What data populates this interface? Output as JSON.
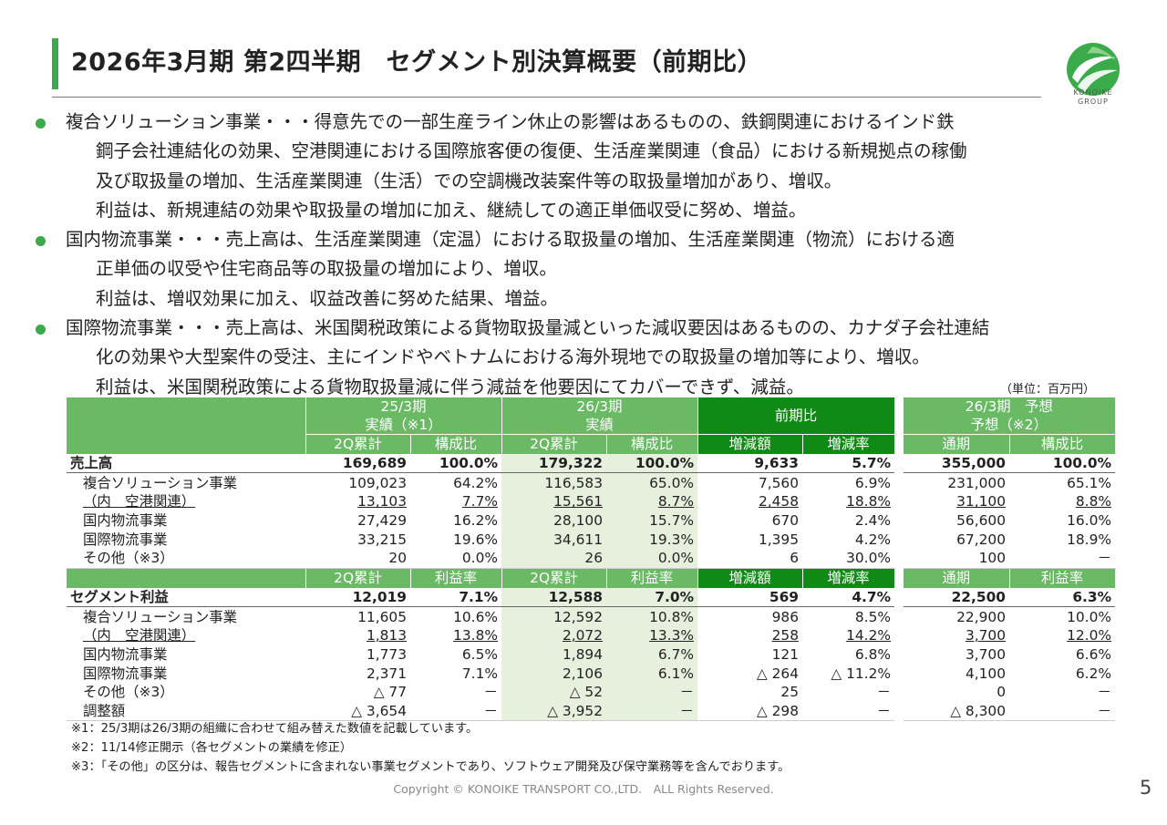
{
  "title": "2026年3月期 第2四半期　セグメント別決算概要（前期比）",
  "logo_text": [
    "KONOIKE",
    "GROUP"
  ],
  "colors": {
    "accent_green": "#3aaa4a",
    "header_green": "#6ab964",
    "header_dark_green": "#0f8a14",
    "shade": "#e7f0dc"
  },
  "bullets": [
    {
      "lines": [
        "複合ソリューション事業・・・得意先での一部生産ライン休止の影響はあるものの、鉄鋼関連におけるインド鉄",
        "鋼子会社連結化の効果、空港関連における国際旅客便の復便、生活産業関連（食品）における新規拠点の稼働",
        "及び取扱量の増加、生活産業関連（生活）での空調機改装案件等の取扱量増加があり、増収。",
        "利益は、新規連結の効果や取扱量の増加に加え、継続しての適正単価収受に努め、増益。"
      ]
    },
    {
      "lines": [
        "国内物流事業・・・売上高は、生活産業関連（定温）における取扱量の増加、生活産業関連（物流）における適",
        "正単価の収受や住宅商品等の取扱量の増加により、増収。",
        "利益は、増収効果に加え、収益改善に努めた結果、増益。"
      ]
    },
    {
      "lines": [
        "国際物流事業・・・売上高は、米国関税政策による貨物取扱量減といった減収要因はあるものの、カナダ子会社連結",
        "化の効果や大型案件の受注、主にインドやベトナムにおける海外現地での取扱量の増加等により、増収。",
        "利益は、米国関税政策による貨物取扱量減に伴う減益を他要因にてカバーできず、減益。"
      ]
    }
  ],
  "unit_note": "（単位：百万円）",
  "table": {
    "groups": {
      "fy25": [
        "25/3期",
        "実績（※1）"
      ],
      "fy26": [
        "26/3期",
        "実績"
      ],
      "yoy": "前期比",
      "forecast": [
        "26/3期　予想",
        "予想（※2）"
      ]
    },
    "sales_cols": [
      "2Q累計",
      "構成比",
      "2Q累計",
      "構成比",
      "増減額",
      "増減率",
      "通期",
      "構成比"
    ],
    "profit_cols": [
      "2Q累計",
      "利益率",
      "2Q累計",
      "利益率",
      "増減額",
      "増減率",
      "通期",
      "利益率"
    ],
    "sales_rows": [
      {
        "label": "売上高",
        "v": [
          "169,689",
          "100.0%",
          "179,322",
          "100.0%",
          "9,633",
          "5.7%",
          "355,000",
          "100.0%"
        ]
      },
      {
        "label": "複合ソリューション事業",
        "v": [
          "109,023",
          "64.2%",
          "116,583",
          "65.0%",
          "7,560",
          "6.9%",
          "231,000",
          "65.1%"
        ]
      },
      {
        "label": "（内　空港関連）",
        "v": [
          "13,103",
          "7.7%",
          "15,561",
          "8.7%",
          "2,458",
          "18.8%",
          "31,100",
          "8.8%"
        ]
      },
      {
        "label": "国内物流事業",
        "v": [
          "27,429",
          "16.2%",
          "28,100",
          "15.7%",
          "670",
          "2.4%",
          "56,600",
          "16.0%"
        ]
      },
      {
        "label": "国際物流事業",
        "v": [
          "33,215",
          "19.6%",
          "34,611",
          "19.3%",
          "1,395",
          "4.2%",
          "67,200",
          "18.9%"
        ]
      },
      {
        "label": "その他（※3）",
        "v": [
          "20",
          "0.0%",
          "26",
          "0.0%",
          "6",
          "30.0%",
          "100",
          "－"
        ]
      }
    ],
    "profit_rows": [
      {
        "label": "セグメント利益",
        "v": [
          "12,019",
          "7.1%",
          "12,588",
          "7.0%",
          "569",
          "4.7%",
          "22,500",
          "6.3%"
        ]
      },
      {
        "label": "複合ソリューション事業",
        "v": [
          "11,605",
          "10.6%",
          "12,592",
          "10.8%",
          "986",
          "8.5%",
          "22,900",
          "10.0%"
        ]
      },
      {
        "label": "（内　空港関連）",
        "v": [
          "1,813",
          "13.8%",
          "2,072",
          "13.3%",
          "258",
          "14.2%",
          "3,700",
          "12.0%"
        ]
      },
      {
        "label": "国内物流事業",
        "v": [
          "1,773",
          "6.5%",
          "1,894",
          "6.7%",
          "121",
          "6.8%",
          "3,700",
          "6.6%"
        ]
      },
      {
        "label": "国際物流事業",
        "v": [
          "2,371",
          "7.1%",
          "2,106",
          "6.1%",
          "△ 264",
          "△ 11.2%",
          "4,100",
          "6.2%"
        ]
      },
      {
        "label": "その他（※3）",
        "v": [
          "△ 77",
          "－",
          "△ 52",
          "－",
          "25",
          "－",
          "0",
          "－"
        ]
      },
      {
        "label": "調整額",
        "v": [
          "△ 3,654",
          "－",
          "△ 3,952",
          "－",
          "△ 298",
          "－",
          "△ 8,300",
          "－"
        ]
      }
    ]
  },
  "notes": [
    "※1：25/3期は26/3期の組織に合わせて組み替えた数値を記載しています。",
    "※2：11/14修正開示（各セグメントの業績を修正）",
    "※3：「その他」の区分は、報告セグメントに含まれない事業セグメントであり、ソフトウェア開発及び保守業務等を含んでおります。"
  ],
  "copyright": "Copyright © KONOIKE TRANSPORT CO.,LTD.　ALL Rights Reserved.",
  "page_number": "5"
}
